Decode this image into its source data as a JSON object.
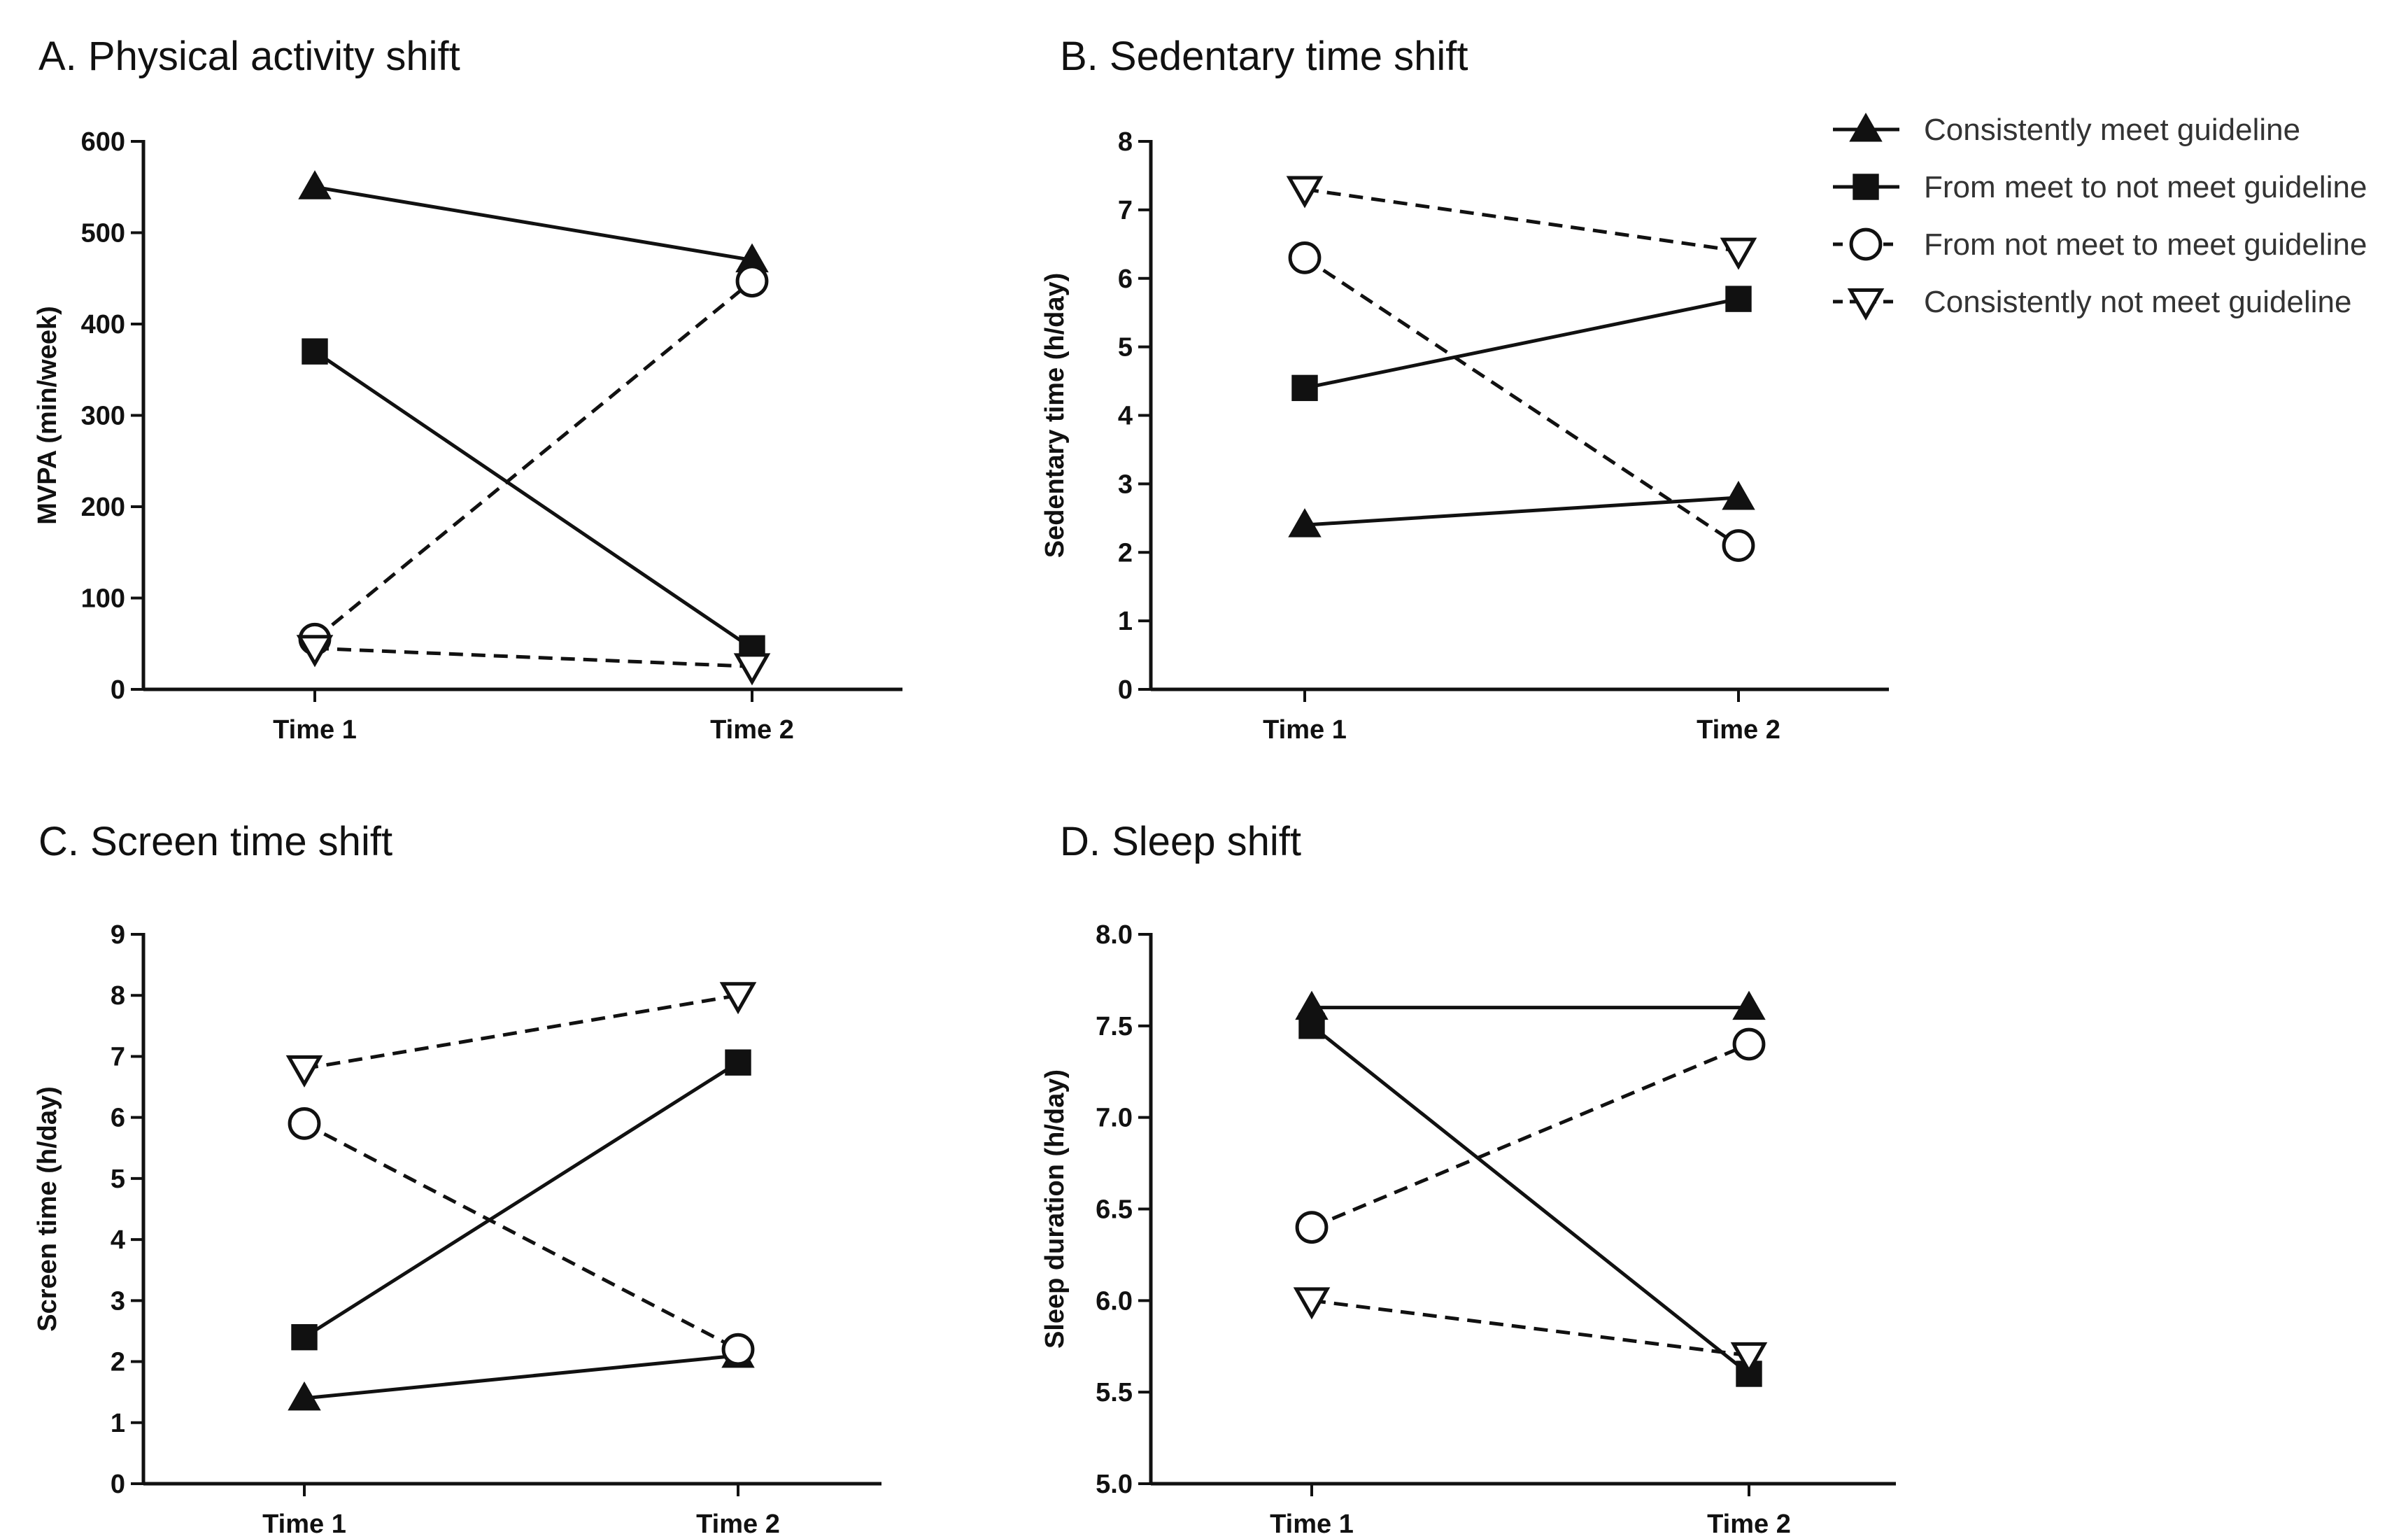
{
  "legend": [
    {
      "label": "Consistently meet guideline",
      "marker": "triangle-filled",
      "line": "solid"
    },
    {
      "label": "From meet to not meet guideline",
      "marker": "square-filled",
      "line": "solid"
    },
    {
      "label": "From not meet to meet guideline",
      "marker": "circle-open",
      "line": "dashed"
    },
    {
      "label": "Consistently not meet guideline",
      "marker": "triangle-down-open",
      "line": "dashed"
    }
  ],
  "colors": {
    "ink": "#111111",
    "background": "#ffffff"
  },
  "chart_data": [
    {
      "type": "line",
      "title": "A. Physical activity shift",
      "xlabel": "",
      "ylabel": "MVPA (min/week)",
      "categories": [
        "Time 1",
        "Time 2"
      ],
      "ylim": [
        0,
        600
      ],
      "yticks": [
        "0",
        "100",
        "200",
        "300",
        "400",
        "500",
        "600"
      ],
      "series": [
        {
          "name": "Consistently meet guideline",
          "values": [
            550,
            470
          ]
        },
        {
          "name": "From meet to not meet guideline",
          "values": [
            370,
            45
          ]
        },
        {
          "name": "From not meet to meet guideline",
          "values": [
            55,
            447
          ]
        },
        {
          "name": "Consistently not meet guideline",
          "values": [
            45,
            25
          ]
        }
      ]
    },
    {
      "type": "line",
      "title": "B. Sedentary time shift",
      "xlabel": "",
      "ylabel": "Sedentary time (h/day)",
      "categories": [
        "Time 1",
        "Time 2"
      ],
      "ylim": [
        0,
        8
      ],
      "yticks": [
        "0",
        "1",
        "2",
        "3",
        "4",
        "5",
        "6",
        "7",
        "8"
      ],
      "series": [
        {
          "name": "Consistently meet guideline",
          "values": [
            2.4,
            2.8
          ]
        },
        {
          "name": "From meet to not meet guideline",
          "values": [
            4.4,
            5.7
          ]
        },
        {
          "name": "From not meet to meet guideline",
          "values": [
            6.3,
            2.1
          ]
        },
        {
          "name": "Consistently not meet guideline",
          "values": [
            7.3,
            6.4
          ]
        }
      ]
    },
    {
      "type": "line",
      "title": "C. Screen time shift",
      "xlabel": "",
      "ylabel": "Screen time (h/day)",
      "categories": [
        "Time 1",
        "Time 2"
      ],
      "ylim": [
        0,
        9
      ],
      "yticks": [
        "0",
        "1",
        "2",
        "3",
        "4",
        "5",
        "6",
        "7",
        "8",
        "9"
      ],
      "series": [
        {
          "name": "Consistently meet guideline",
          "values": [
            1.4,
            2.1
          ]
        },
        {
          "name": "From meet to not meet guideline",
          "values": [
            2.4,
            6.9
          ]
        },
        {
          "name": "From not meet to meet guideline",
          "values": [
            5.9,
            2.2
          ]
        },
        {
          "name": "Consistently not meet guideline",
          "values": [
            6.8,
            8.0
          ]
        }
      ]
    },
    {
      "type": "line",
      "title": "D. Sleep shift",
      "xlabel": "",
      "ylabel": "Sleep duration (h/day)",
      "categories": [
        "Time 1",
        "Time 2"
      ],
      "ylim": [
        5.0,
        8.0
      ],
      "yticks": [
        "5.0",
        "5.5",
        "6.0",
        "6.5",
        "7.0",
        "7.5",
        "8.0"
      ],
      "series": [
        {
          "name": "Consistently meet guideline",
          "values": [
            7.6,
            7.6
          ]
        },
        {
          "name": "From meet to not meet guideline",
          "values": [
            7.5,
            5.6
          ]
        },
        {
          "name": "From not meet to meet guideline",
          "values": [
            6.4,
            7.4
          ]
        },
        {
          "name": "Consistently not meet guideline",
          "values": [
            6.0,
            5.7
          ]
        }
      ]
    }
  ]
}
